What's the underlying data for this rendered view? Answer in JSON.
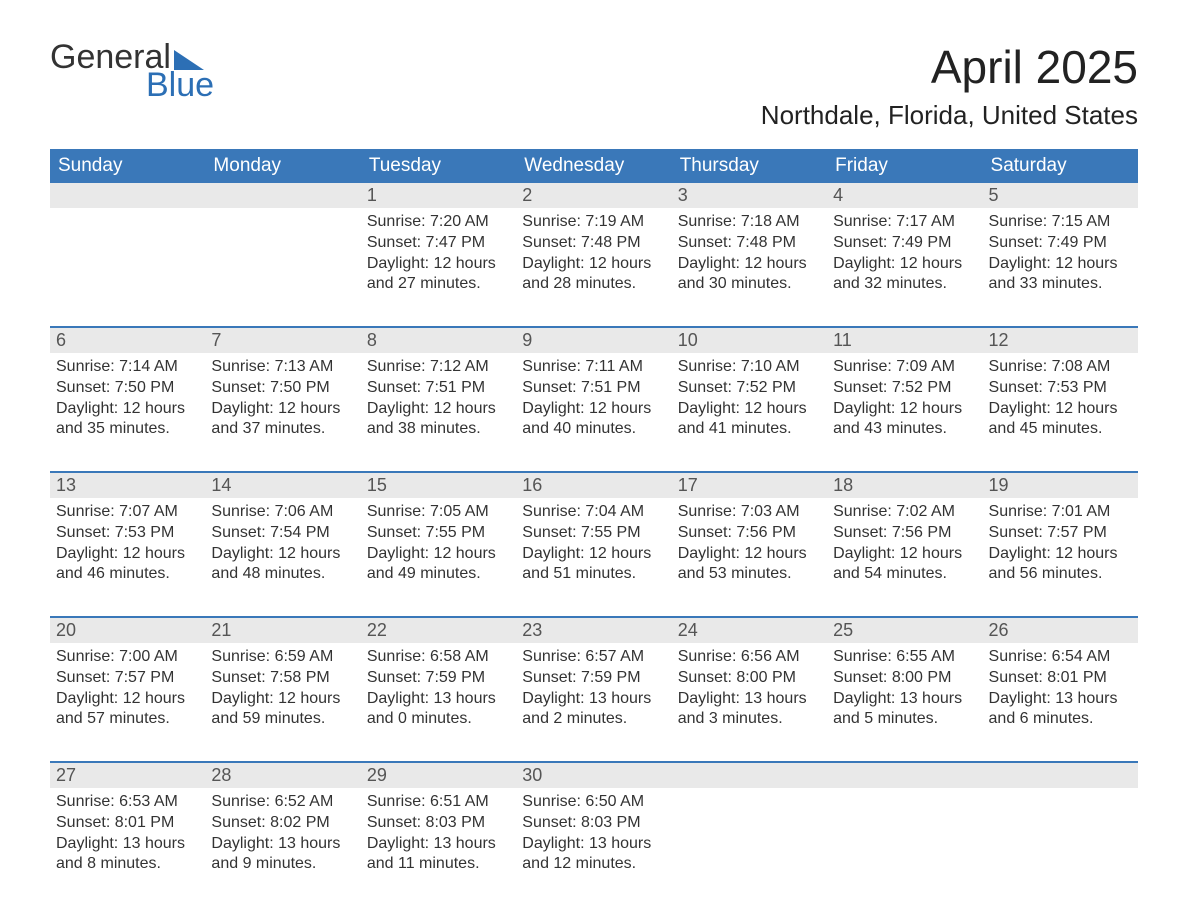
{
  "logo": {
    "word1": "General",
    "word2": "Blue"
  },
  "title": "April 2025",
  "location": "Northdale, Florida, United States",
  "colors": {
    "header_bg": "#3a78b9",
    "header_text": "#ffffff",
    "daynum_bg": "#e9e9e9",
    "daynum_text": "#555555",
    "body_text": "#333333",
    "logo_blue": "#2c6fb5",
    "week_border": "#3a78b9",
    "page_bg": "#ffffff"
  },
  "day_names": [
    "Sunday",
    "Monday",
    "Tuesday",
    "Wednesday",
    "Thursday",
    "Friday",
    "Saturday"
  ],
  "weeks": [
    [
      {
        "blank": true
      },
      {
        "blank": true
      },
      {
        "day": "1",
        "sunrise": "Sunrise: 7:20 AM",
        "sunset": "Sunset: 7:47 PM",
        "daylight1": "Daylight: 12 hours",
        "daylight2": "and 27 minutes."
      },
      {
        "day": "2",
        "sunrise": "Sunrise: 7:19 AM",
        "sunset": "Sunset: 7:48 PM",
        "daylight1": "Daylight: 12 hours",
        "daylight2": "and 28 minutes."
      },
      {
        "day": "3",
        "sunrise": "Sunrise: 7:18 AM",
        "sunset": "Sunset: 7:48 PM",
        "daylight1": "Daylight: 12 hours",
        "daylight2": "and 30 minutes."
      },
      {
        "day": "4",
        "sunrise": "Sunrise: 7:17 AM",
        "sunset": "Sunset: 7:49 PM",
        "daylight1": "Daylight: 12 hours",
        "daylight2": "and 32 minutes."
      },
      {
        "day": "5",
        "sunrise": "Sunrise: 7:15 AM",
        "sunset": "Sunset: 7:49 PM",
        "daylight1": "Daylight: 12 hours",
        "daylight2": "and 33 minutes."
      }
    ],
    [
      {
        "day": "6",
        "sunrise": "Sunrise: 7:14 AM",
        "sunset": "Sunset: 7:50 PM",
        "daylight1": "Daylight: 12 hours",
        "daylight2": "and 35 minutes."
      },
      {
        "day": "7",
        "sunrise": "Sunrise: 7:13 AM",
        "sunset": "Sunset: 7:50 PM",
        "daylight1": "Daylight: 12 hours",
        "daylight2": "and 37 minutes."
      },
      {
        "day": "8",
        "sunrise": "Sunrise: 7:12 AM",
        "sunset": "Sunset: 7:51 PM",
        "daylight1": "Daylight: 12 hours",
        "daylight2": "and 38 minutes."
      },
      {
        "day": "9",
        "sunrise": "Sunrise: 7:11 AM",
        "sunset": "Sunset: 7:51 PM",
        "daylight1": "Daylight: 12 hours",
        "daylight2": "and 40 minutes."
      },
      {
        "day": "10",
        "sunrise": "Sunrise: 7:10 AM",
        "sunset": "Sunset: 7:52 PM",
        "daylight1": "Daylight: 12 hours",
        "daylight2": "and 41 minutes."
      },
      {
        "day": "11",
        "sunrise": "Sunrise: 7:09 AM",
        "sunset": "Sunset: 7:52 PM",
        "daylight1": "Daylight: 12 hours",
        "daylight2": "and 43 minutes."
      },
      {
        "day": "12",
        "sunrise": "Sunrise: 7:08 AM",
        "sunset": "Sunset: 7:53 PM",
        "daylight1": "Daylight: 12 hours",
        "daylight2": "and 45 minutes."
      }
    ],
    [
      {
        "day": "13",
        "sunrise": "Sunrise: 7:07 AM",
        "sunset": "Sunset: 7:53 PM",
        "daylight1": "Daylight: 12 hours",
        "daylight2": "and 46 minutes."
      },
      {
        "day": "14",
        "sunrise": "Sunrise: 7:06 AM",
        "sunset": "Sunset: 7:54 PM",
        "daylight1": "Daylight: 12 hours",
        "daylight2": "and 48 minutes."
      },
      {
        "day": "15",
        "sunrise": "Sunrise: 7:05 AM",
        "sunset": "Sunset: 7:55 PM",
        "daylight1": "Daylight: 12 hours",
        "daylight2": "and 49 minutes."
      },
      {
        "day": "16",
        "sunrise": "Sunrise: 7:04 AM",
        "sunset": "Sunset: 7:55 PM",
        "daylight1": "Daylight: 12 hours",
        "daylight2": "and 51 minutes."
      },
      {
        "day": "17",
        "sunrise": "Sunrise: 7:03 AM",
        "sunset": "Sunset: 7:56 PM",
        "daylight1": "Daylight: 12 hours",
        "daylight2": "and 53 minutes."
      },
      {
        "day": "18",
        "sunrise": "Sunrise: 7:02 AM",
        "sunset": "Sunset: 7:56 PM",
        "daylight1": "Daylight: 12 hours",
        "daylight2": "and 54 minutes."
      },
      {
        "day": "19",
        "sunrise": "Sunrise: 7:01 AM",
        "sunset": "Sunset: 7:57 PM",
        "daylight1": "Daylight: 12 hours",
        "daylight2": "and 56 minutes."
      }
    ],
    [
      {
        "day": "20",
        "sunrise": "Sunrise: 7:00 AM",
        "sunset": "Sunset: 7:57 PM",
        "daylight1": "Daylight: 12 hours",
        "daylight2": "and 57 minutes."
      },
      {
        "day": "21",
        "sunrise": "Sunrise: 6:59 AM",
        "sunset": "Sunset: 7:58 PM",
        "daylight1": "Daylight: 12 hours",
        "daylight2": "and 59 minutes."
      },
      {
        "day": "22",
        "sunrise": "Sunrise: 6:58 AM",
        "sunset": "Sunset: 7:59 PM",
        "daylight1": "Daylight: 13 hours",
        "daylight2": "and 0 minutes."
      },
      {
        "day": "23",
        "sunrise": "Sunrise: 6:57 AM",
        "sunset": "Sunset: 7:59 PM",
        "daylight1": "Daylight: 13 hours",
        "daylight2": "and 2 minutes."
      },
      {
        "day": "24",
        "sunrise": "Sunrise: 6:56 AM",
        "sunset": "Sunset: 8:00 PM",
        "daylight1": "Daylight: 13 hours",
        "daylight2": "and 3 minutes."
      },
      {
        "day": "25",
        "sunrise": "Sunrise: 6:55 AM",
        "sunset": "Sunset: 8:00 PM",
        "daylight1": "Daylight: 13 hours",
        "daylight2": "and 5 minutes."
      },
      {
        "day": "26",
        "sunrise": "Sunrise: 6:54 AM",
        "sunset": "Sunset: 8:01 PM",
        "daylight1": "Daylight: 13 hours",
        "daylight2": "and 6 minutes."
      }
    ],
    [
      {
        "day": "27",
        "sunrise": "Sunrise: 6:53 AM",
        "sunset": "Sunset: 8:01 PM",
        "daylight1": "Daylight: 13 hours",
        "daylight2": "and 8 minutes."
      },
      {
        "day": "28",
        "sunrise": "Sunrise: 6:52 AM",
        "sunset": "Sunset: 8:02 PM",
        "daylight1": "Daylight: 13 hours",
        "daylight2": "and 9 minutes."
      },
      {
        "day": "29",
        "sunrise": "Sunrise: 6:51 AM",
        "sunset": "Sunset: 8:03 PM",
        "daylight1": "Daylight: 13 hours",
        "daylight2": "and 11 minutes."
      },
      {
        "day": "30",
        "sunrise": "Sunrise: 6:50 AM",
        "sunset": "Sunset: 8:03 PM",
        "daylight1": "Daylight: 13 hours",
        "daylight2": "and 12 minutes."
      },
      {
        "blank": true
      },
      {
        "blank": true
      },
      {
        "blank": true
      }
    ]
  ]
}
